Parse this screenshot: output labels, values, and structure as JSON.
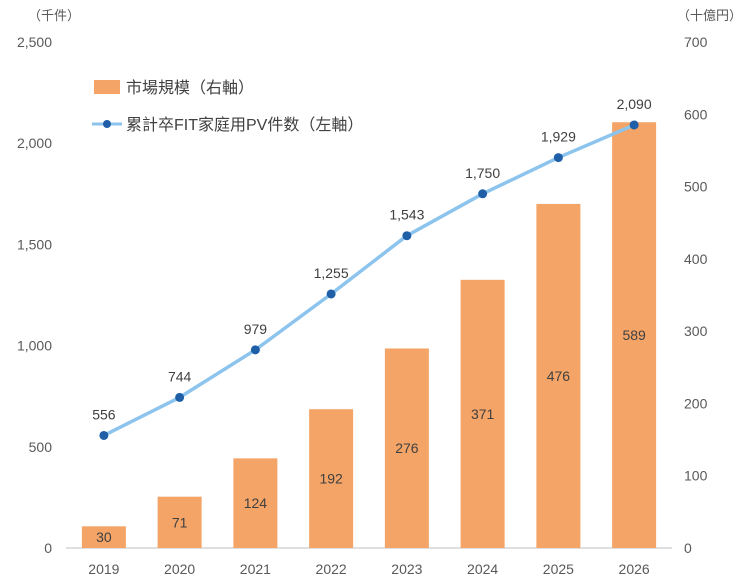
{
  "chart_data": {
    "type": "bar",
    "categories": [
      "2019",
      "2020",
      "2021",
      "2022",
      "2023",
      "2024",
      "2025",
      "2026"
    ],
    "left_axis": {
      "unit": "（千件）",
      "range": [
        0,
        2500
      ],
      "ticks": [
        "0",
        "500",
        "1,000",
        "1,500",
        "2,000",
        "2,500"
      ]
    },
    "right_axis": {
      "unit": "（十億円）",
      "range": [
        0,
        700
      ],
      "ticks": [
        "0",
        "100",
        "200",
        "300",
        "400",
        "500",
        "600",
        "700"
      ]
    },
    "series": [
      {
        "name": "市場規模（右軸）",
        "type": "bar",
        "axis": "right",
        "color": "#F4A466",
        "values": [
          30,
          71,
          124,
          192,
          276,
          371,
          476,
          589
        ],
        "labels": [
          "30",
          "71",
          "124",
          "192",
          "276",
          "371",
          "476",
          "589"
        ]
      },
      {
        "name": "累計卒FIT家庭用PV件数（左軸）",
        "type": "line",
        "axis": "left",
        "line_color": "#8CC4EE",
        "marker_color": "#1F5FA8",
        "values": [
          556,
          744,
          979,
          1255,
          1543,
          1750,
          1929,
          2090
        ],
        "labels": [
          "556",
          "744",
          "979",
          "1,255",
          "1,543",
          "1,750",
          "1,929",
          "2,090"
        ]
      }
    ],
    "legend": "top-left",
    "grid": false
  }
}
